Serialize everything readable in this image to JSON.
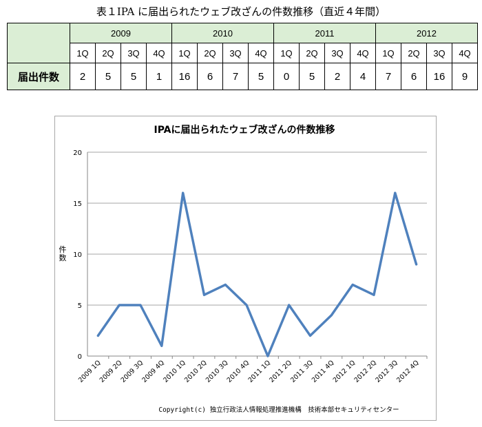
{
  "table": {
    "title": "表１IPA に届出られたウェブ改ざんの件数推移（直近４年間）",
    "row_label": "届出件数",
    "years": [
      "2009",
      "2010",
      "2011",
      "2012"
    ],
    "quarters": [
      "1Q",
      "2Q",
      "3Q",
      "4Q"
    ],
    "values": [
      2,
      5,
      5,
      1,
      16,
      6,
      7,
      5,
      0,
      5,
      2,
      4,
      7,
      6,
      16,
      9
    ]
  },
  "chart_data": {
    "type": "line",
    "title": "IPAに届出られたウェブ改ざんの件数推移",
    "ylabel": "件数",
    "xlabel": "",
    "categories": [
      "2009 1Q",
      "2009 2Q",
      "2009 3Q",
      "2009 4Q",
      "2010 1Q",
      "2010 2Q",
      "2010 3Q",
      "2010 4Q",
      "2011 1Q",
      "2011 2Q",
      "2011 3Q",
      "2011 4Q",
      "2012 1Q",
      "2012 2Q",
      "2012 3Q",
      "2012 4Q"
    ],
    "series": [
      {
        "values": [
          2,
          5,
          5,
          1,
          16,
          6,
          7,
          5,
          0,
          5,
          2,
          4,
          7,
          6,
          16,
          9
        ]
      }
    ],
    "ylim": [
      0,
      20
    ],
    "yticks": [
      0,
      5,
      10,
      15,
      20
    ],
    "grid": true,
    "legend": "none",
    "line_color": "#4f81bd"
  },
  "footer": {
    "copyright": "Copyright(c) 独立行政法人情報処理推進機構　技術本部セキュリティセンター"
  }
}
